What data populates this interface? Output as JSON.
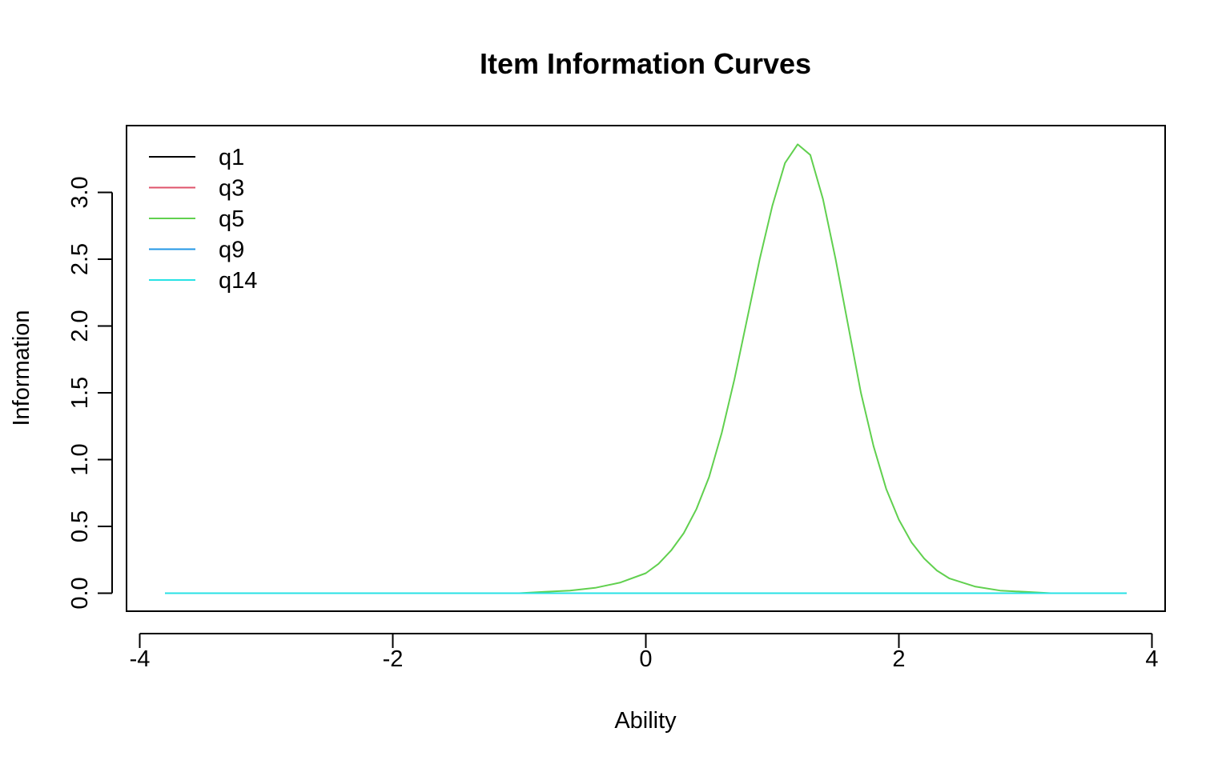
{
  "chart_data": {
    "type": "line",
    "title": "Item Information Curves",
    "xlabel": "Ability",
    "ylabel": "Information",
    "xlim": [
      -4,
      4
    ],
    "ylim": [
      0,
      3.35
    ],
    "x_ticks": [
      "-4",
      "-2",
      "0",
      "2",
      "4"
    ],
    "y_ticks": [
      "0.0",
      "0.5",
      "1.0",
      "1.5",
      "2.0",
      "2.5",
      "3.0"
    ],
    "legend_position": "top-left",
    "grid": false,
    "series": [
      {
        "name": "q1",
        "color": "#000000",
        "x": [
          -3.8,
          3.8
        ],
        "y": [
          0,
          0
        ]
      },
      {
        "name": "q3",
        "color": "#DF536B",
        "x": [
          -3.8,
          3.8
        ],
        "y": [
          0,
          0
        ]
      },
      {
        "name": "q5",
        "color": "#61D04F",
        "x": [
          -3.8,
          -1.0,
          -0.8,
          -0.6,
          -0.4,
          -0.2,
          0.0,
          0.1,
          0.2,
          0.3,
          0.4,
          0.5,
          0.6,
          0.7,
          0.8,
          0.9,
          1.0,
          1.1,
          1.2,
          1.3,
          1.4,
          1.5,
          1.6,
          1.7,
          1.8,
          1.9,
          2.0,
          2.1,
          2.2,
          2.3,
          2.4,
          2.6,
          2.8,
          3.0,
          3.2,
          3.4,
          3.8
        ],
        "y": [
          0,
          0.0,
          0.01,
          0.02,
          0.04,
          0.08,
          0.15,
          0.22,
          0.32,
          0.45,
          0.63,
          0.87,
          1.2,
          1.6,
          2.05,
          2.5,
          2.9,
          3.22,
          3.36,
          3.28,
          2.95,
          2.5,
          2.0,
          1.5,
          1.1,
          0.78,
          0.55,
          0.38,
          0.26,
          0.17,
          0.11,
          0.05,
          0.02,
          0.01,
          0.0,
          0.0,
          0
        ]
      },
      {
        "name": "q9",
        "color": "#2297E6",
        "x": [
          -3.8,
          3.8
        ],
        "y": [
          0,
          0
        ]
      },
      {
        "name": "q14",
        "color": "#28E2E5",
        "x": [
          -3.8,
          3.8
        ],
        "y": [
          0,
          0
        ]
      }
    ]
  }
}
